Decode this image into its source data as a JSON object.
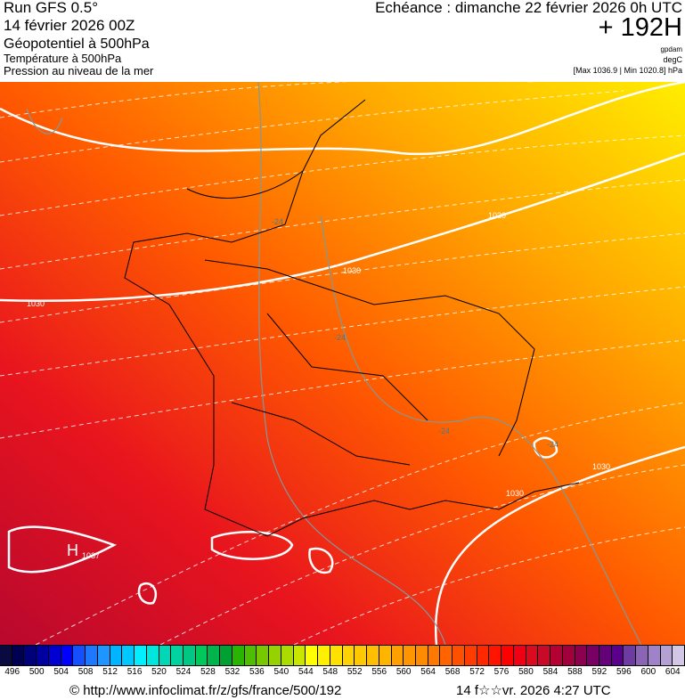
{
  "header": {
    "run": "Run GFS 0.5°",
    "date": "14 février 2026 00Z",
    "layer1": "Géopotentiel à 500hPa",
    "layer2": "Température à 500hPa",
    "layer3": "Pression au niveau de la mer",
    "valid": "Echéance : dimanche 22 février 2026 0h UTC",
    "lead": "+ 192H",
    "unit1": "gpdam",
    "unit2": "degC",
    "unit3": "[Max 1036.9 | Min 1020.8] hPa"
  },
  "map": {
    "isobar_labels": [
      "1030",
      "1030",
      "1030",
      "1030",
      "1030"
    ],
    "high_label": "H",
    "high_value": "1037",
    "temp_labels": [
      "-24",
      "-24",
      "-24",
      "-24"
    ],
    "colors": {
      "low": "#c8102a",
      "mid": "#ff6a00",
      "high": "#ffee00",
      "isobar": "#ffffff",
      "temp": "#7f9a9a"
    }
  },
  "colorbar": {
    "labels": [
      "496",
      "500",
      "504",
      "508",
      "512",
      "516",
      "520",
      "524",
      "528",
      "532",
      "536",
      "540",
      "544",
      "548",
      "552",
      "556",
      "560",
      "564",
      "568",
      "572",
      "576",
      "580",
      "584",
      "588",
      "592",
      "596",
      "600",
      "604"
    ],
    "colors": [
      "#0a0a40",
      "#000050",
      "#00007a",
      "#0000a0",
      "#0000d0",
      "#0000ff",
      "#1450ff",
      "#1e78ff",
      "#1e96ff",
      "#00b4ff",
      "#00c8ff",
      "#00f0ff",
      "#00e6dc",
      "#00d7b4",
      "#00d2a0",
      "#00c882",
      "#00c85a",
      "#00b44b",
      "#00a032",
      "#28b400",
      "#50be00",
      "#78c800",
      "#96d200",
      "#aadc00",
      "#c8e600",
      "#ffff00",
      "#fff000",
      "#ffe100",
      "#ffd200",
      "#ffc800",
      "#ffbe00",
      "#ffb400",
      "#ffa000",
      "#ff9600",
      "#ff8c00",
      "#ff7800",
      "#ff6400",
      "#ff5000",
      "#ff3c00",
      "#ff2800",
      "#ff1400",
      "#ff0000",
      "#f00014",
      "#dc0a1e",
      "#c80a28",
      "#b40032",
      "#a0003c",
      "#8c0050",
      "#780064",
      "#640078",
      "#5a008c",
      "#6e3ca0",
      "#8c64b4",
      "#a082c8",
      "#b4a0d2",
      "#d2c8e6"
    ]
  },
  "footer": {
    "url": "© http://www.infoclimat.fr/z/gfs/france/500/192",
    "generated": "14 f☆☆vr. 2026  4:27 UTC"
  }
}
